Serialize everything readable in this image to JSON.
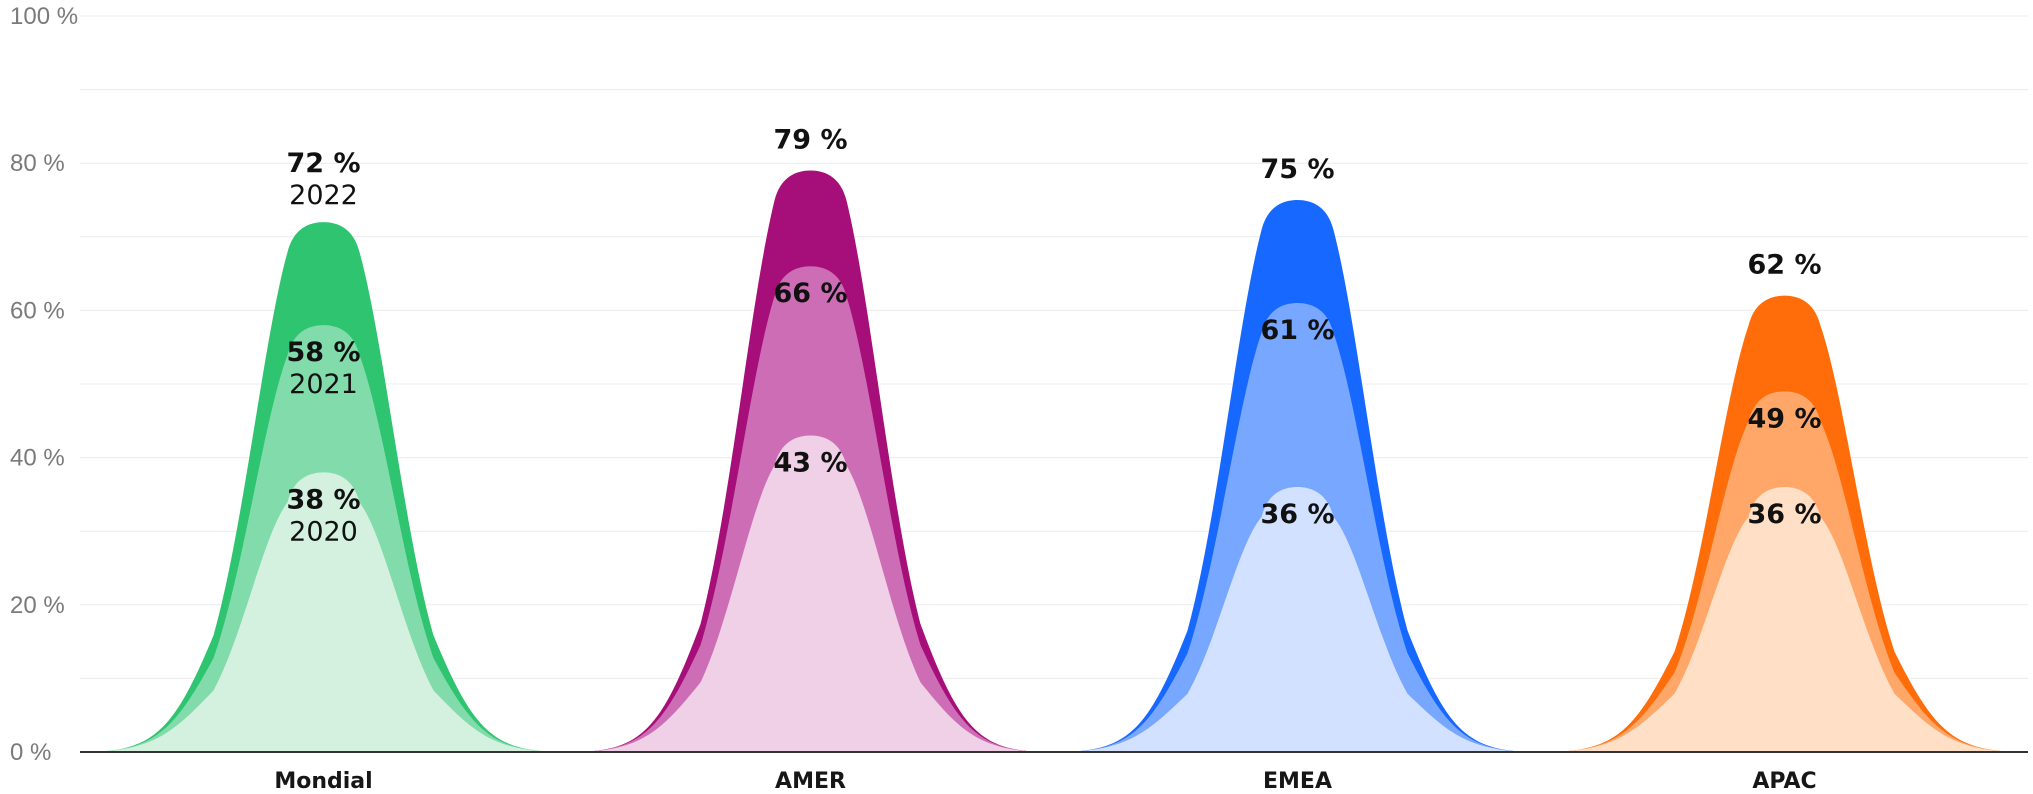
{
  "chart_data": {
    "type": "area",
    "ylim": [
      0,
      100
    ],
    "yticks": [
      "0 %",
      "20 %",
      "40 %",
      "60 %",
      "80 %",
      "100 %"
    ],
    "grid": true,
    "categories": [
      "Mondial",
      "AMER",
      "EMEA",
      "APAC"
    ],
    "series_years": [
      "2020",
      "2021",
      "2022"
    ],
    "groups": [
      {
        "category": "Mondial",
        "colors": [
          "#d4f1e0",
          "#82dbab",
          "#2ec470"
        ],
        "values": [
          38,
          58,
          72
        ],
        "labels": [
          "38 %",
          "58 %",
          "72 %"
        ],
        "year_labels": [
          "2020",
          "2021",
          "2022"
        ]
      },
      {
        "category": "AMER",
        "colors": [
          "#efd0e6",
          "#cd6db5",
          "#a60e7a"
        ],
        "values": [
          43,
          66,
          79
        ],
        "labels": [
          "43 %",
          "66 %",
          "79 %"
        ],
        "year_labels": [
          "",
          "",
          ""
        ]
      },
      {
        "category": "EMEA",
        "colors": [
          "#d2e1ff",
          "#78a7ff",
          "#1768ff"
        ],
        "values": [
          36,
          61,
          75
        ],
        "labels": [
          "36 %",
          "61 %",
          "75 %"
        ],
        "year_labels": [
          "",
          "",
          ""
        ]
      },
      {
        "category": "APAC",
        "colors": [
          "#ffe0c7",
          "#ffa768",
          "#ff6d0a"
        ],
        "values": [
          36,
          49,
          62
        ],
        "labels": [
          "36 %",
          "49 %",
          "62 %"
        ],
        "year_labels": [
          "",
          "",
          ""
        ]
      }
    ]
  }
}
